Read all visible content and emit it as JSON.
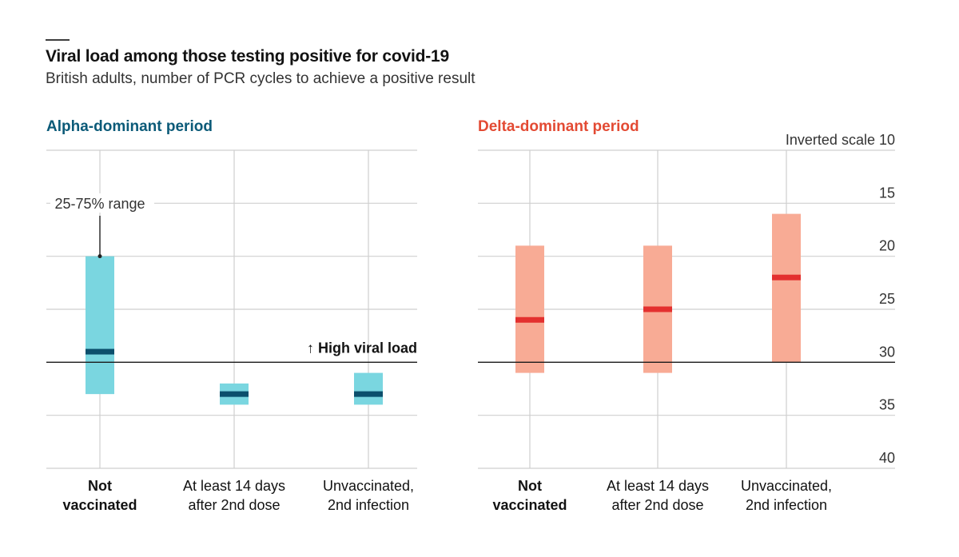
{
  "title": "Viral load among those testing positive for covid-19",
  "subtitle": "British adults, number of PCR cycles to achieve a positive result",
  "colors": {
    "alpha_box": "#7ad6e0",
    "alpha_median": "#0b4f6c",
    "alpha_title": "#0b5a78",
    "delta_box": "#f8ab95",
    "delta_median": "#e3302f",
    "delta_title": "#e34a33",
    "grid": "#cfcfcf",
    "reference_line": "#1a1a1a"
  },
  "chart_data": [
    {
      "type": "box",
      "panel": "Alpha-dominant period",
      "categories": [
        {
          "line1": "Not",
          "line2": "vaccinated",
          "bold": true
        },
        {
          "line1": "At least 14 days",
          "line2": "after 2nd dose",
          "bold": false
        },
        {
          "line1": "Unvaccinated,",
          "line2": "2nd infection",
          "bold": false
        }
      ],
      "boxes": [
        {
          "q1": 20,
          "q3": 33,
          "median": 29
        },
        {
          "q1": 32,
          "q3": 34,
          "median": 33
        },
        {
          "q1": 31,
          "q3": 34,
          "median": 33
        }
      ],
      "ylim": [
        10,
        40
      ],
      "y_inverted": true,
      "reference_value": 30,
      "reference_label": "↑ High viral load",
      "range_annotation": {
        "text": "25-75% range",
        "points_to_value": 20
      }
    },
    {
      "type": "box",
      "panel": "Delta-dominant period",
      "categories": [
        {
          "line1": "Not",
          "line2": "vaccinated",
          "bold": true
        },
        {
          "line1": "At least 14 days",
          "line2": "after 2nd dose",
          "bold": false
        },
        {
          "line1": "Unvaccinated,",
          "line2": "2nd infection",
          "bold": false
        }
      ],
      "boxes": [
        {
          "q1": 19,
          "q3": 31,
          "median": 26
        },
        {
          "q1": 19,
          "q3": 31,
          "median": 25
        },
        {
          "q1": 16,
          "q3": 30,
          "median": 22
        }
      ],
      "ylim": [
        10,
        40
      ],
      "y_inverted": true,
      "reference_value": 30,
      "yticks": [
        10,
        15,
        20,
        25,
        30,
        35,
        40
      ],
      "ytick_first_prefix": "Inverted scale"
    }
  ]
}
